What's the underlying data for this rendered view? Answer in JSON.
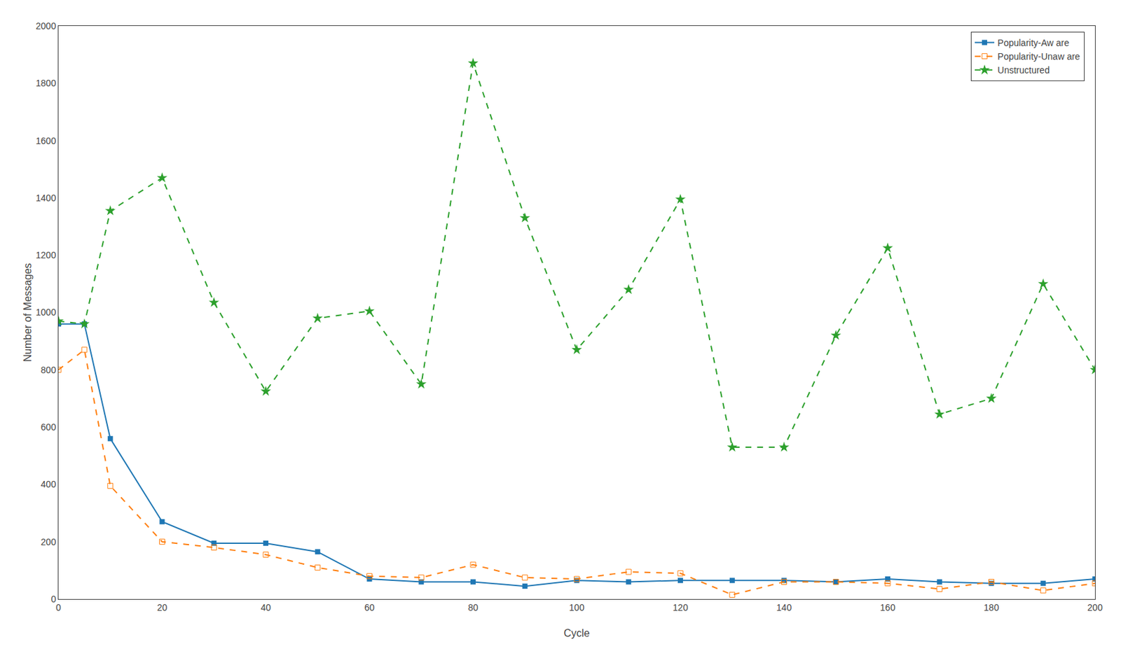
{
  "chart_data": {
    "type": "line",
    "xlabel": "Cycle",
    "ylabel": "Number of Messages",
    "x": [
      0,
      5,
      10,
      20,
      30,
      40,
      50,
      60,
      70,
      80,
      90,
      100,
      110,
      120,
      130,
      140,
      150,
      160,
      170,
      180,
      190,
      200
    ],
    "series": [
      {
        "name": "Popularity-Aw are",
        "line_style": "solid",
        "marker": "square",
        "values": [
          960,
          960,
          560,
          270,
          195,
          195,
          165,
          70,
          60,
          60,
          45,
          65,
          60,
          65,
          65,
          65,
          60,
          70,
          60,
          55,
          55,
          70
        ]
      },
      {
        "name": "Popularity-Unaw are",
        "line_style": "dash",
        "marker": "square-open",
        "values": [
          800,
          870,
          395,
          200,
          180,
          155,
          110,
          80,
          75,
          120,
          75,
          70,
          95,
          90,
          15,
          60,
          60,
          55,
          35,
          60,
          30,
          55
        ]
      },
      {
        "name": "Unstructured",
        "line_style": "dash",
        "marker": "star",
        "values": [
          970,
          960,
          1355,
          1470,
          1035,
          725,
          980,
          1005,
          750,
          1870,
          1330,
          870,
          1080,
          1395,
          530,
          530,
          920,
          1225,
          645,
          700,
          1100,
          800
        ]
      }
    ],
    "xlim": [
      0,
      200
    ],
    "ylim": [
      0,
      2000
    ],
    "xticks": [
      0,
      20,
      40,
      60,
      80,
      100,
      120,
      140,
      160,
      180,
      200
    ],
    "yticks": [
      0,
      200,
      400,
      600,
      800,
      1000,
      1200,
      1400,
      1600,
      1800,
      2000
    ],
    "grid": false,
    "legend": "upper right"
  }
}
